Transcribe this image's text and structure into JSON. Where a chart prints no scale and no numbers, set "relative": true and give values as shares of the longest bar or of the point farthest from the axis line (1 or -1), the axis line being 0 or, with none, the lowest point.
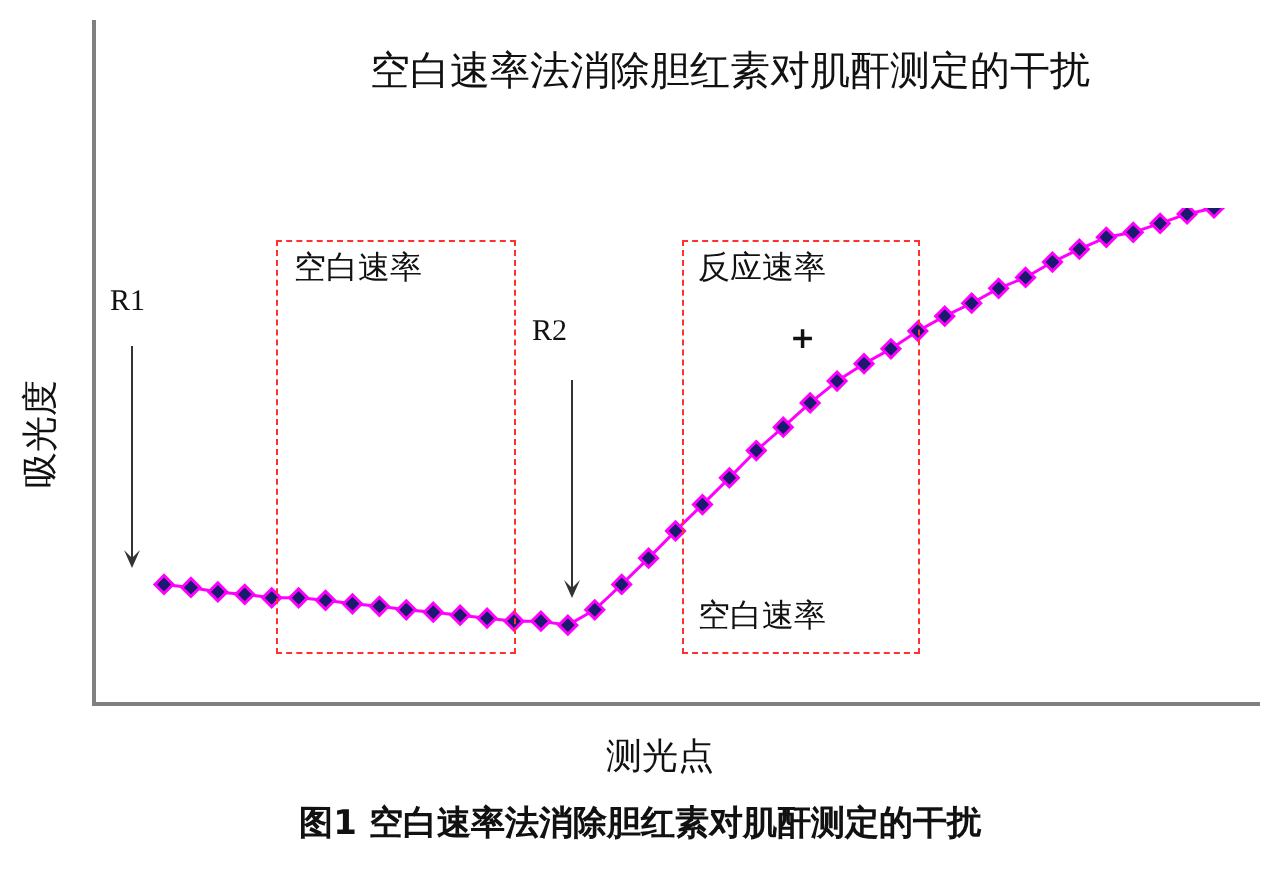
{
  "chart_data": {
    "type": "line",
    "title": "空白速率法消除胆红素对肌酐测定的干扰",
    "xlabel": "测光点",
    "ylabel": "吸光度",
    "relative": true,
    "marker": "diamond",
    "line_style": "solid",
    "legend": false,
    "categories": [
      null,
      null,
      null,
      null,
      null,
      null,
      null,
      null,
      null,
      null,
      null,
      null,
      null,
      null,
      null,
      null,
      null,
      null,
      null,
      null,
      null,
      null,
      null,
      null,
      null,
      null,
      null,
      null,
      null,
      null,
      null,
      null,
      null,
      null,
      null,
      null,
      null,
      null,
      null,
      null
    ],
    "series": [
      {
        "color": "#ff00ff",
        "values": [
          0.241,
          0.235,
          0.226,
          0.221,
          0.214,
          0.214,
          0.209,
          0.202,
          0.197,
          0.19,
          0.185,
          0.179,
          0.173,
          0.167,
          0.167,
          0.159,
          0.19,
          0.241,
          0.294,
          0.349,
          0.402,
          0.456,
          0.511,
          0.558,
          0.607,
          0.651,
          0.686,
          0.716,
          0.752,
          0.782,
          0.808,
          0.838,
          0.86,
          0.891,
          0.917,
          0.941,
          0.951,
          0.969,
          0.988,
          1
        ]
      }
    ],
    "annotations": [
      "R1",
      "R2",
      "空白速率",
      "反应速率",
      "+",
      "空白速率",
      "图1  空白速率法消除胆红素对肌酐测定的干扰"
    ]
  }
}
